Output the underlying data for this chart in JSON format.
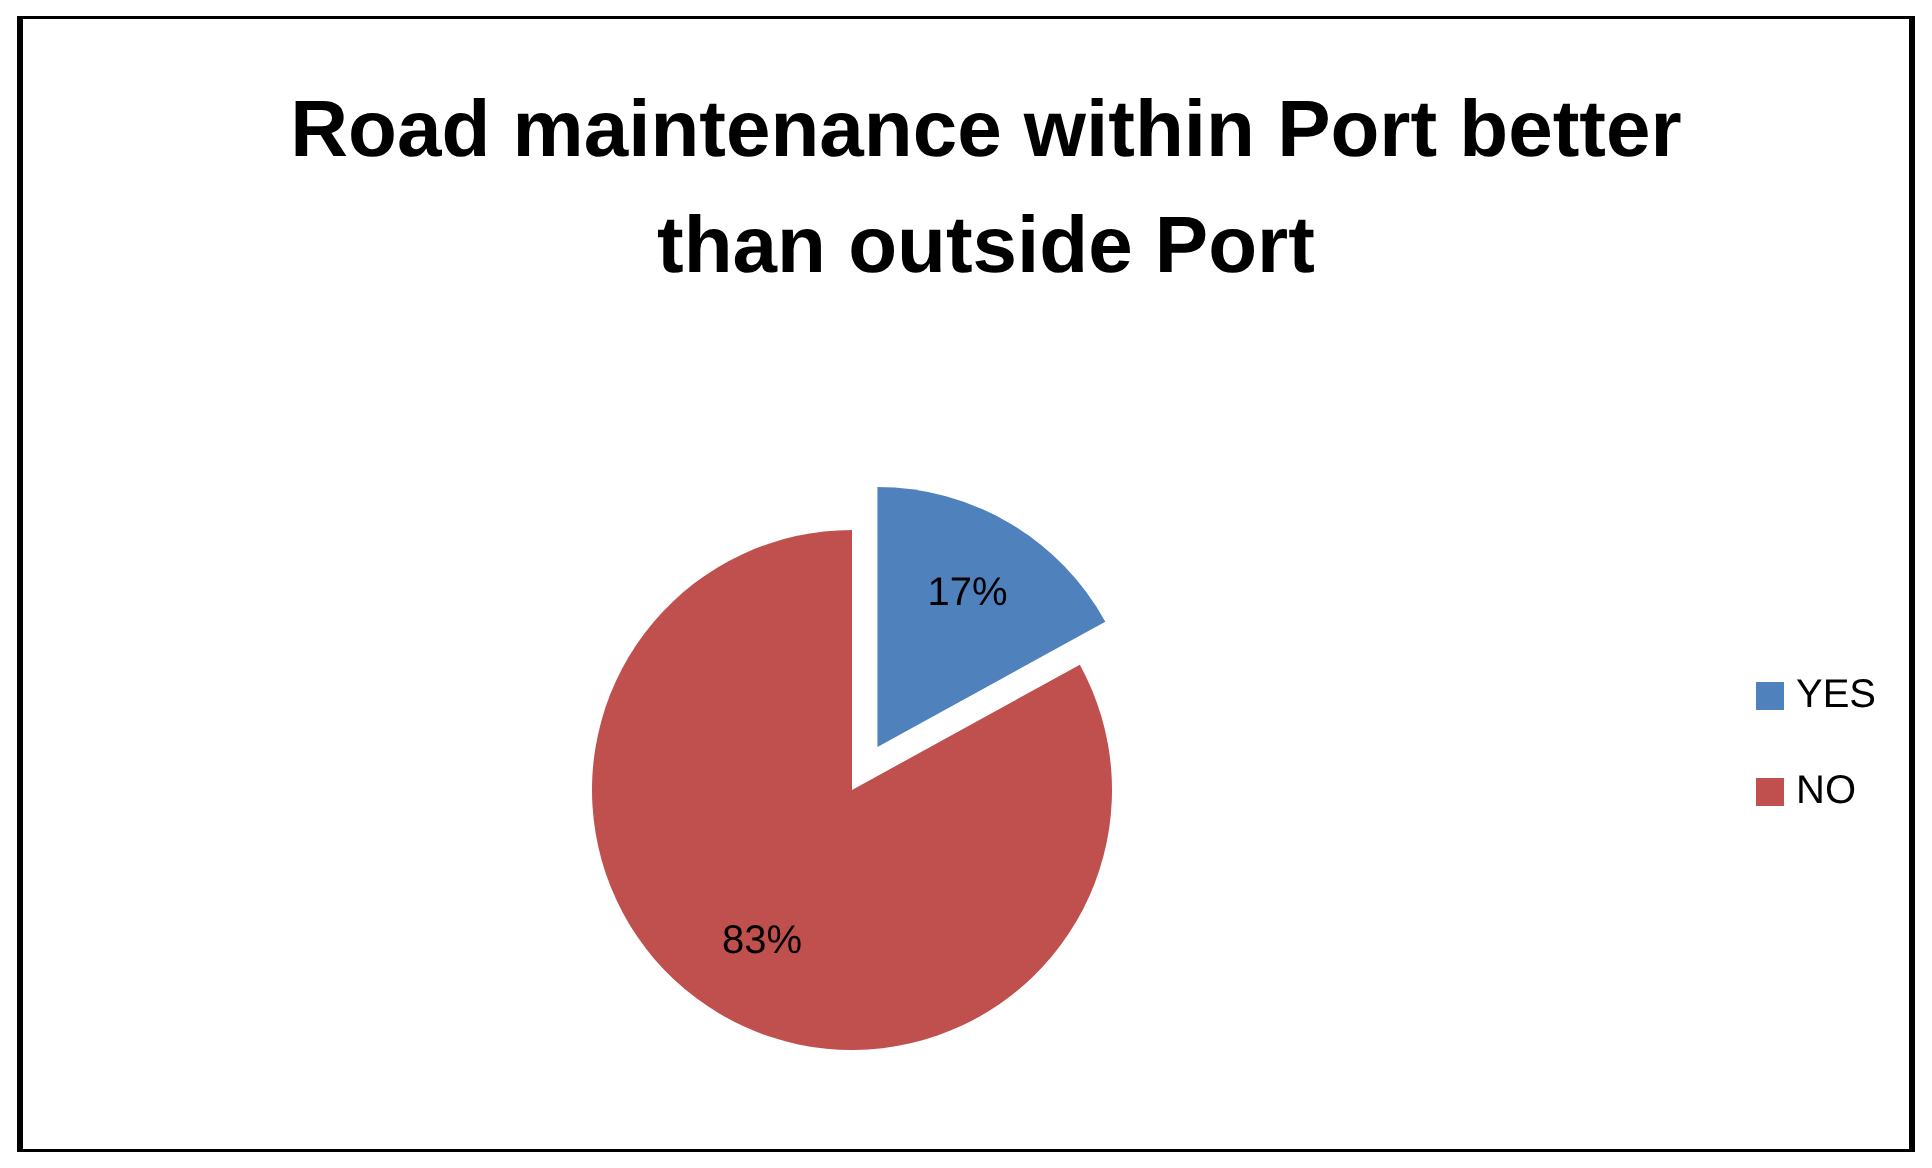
{
  "chart_data": {
    "type": "pie",
    "title": "Road maintenance within Port better than outside Port",
    "categories": [
      "YES",
      "NO"
    ],
    "values": [
      17,
      83
    ],
    "value_labels": [
      "17%",
      "83%"
    ],
    "colors": [
      "#4f81bd",
      "#c0504d"
    ],
    "legend": "right"
  }
}
